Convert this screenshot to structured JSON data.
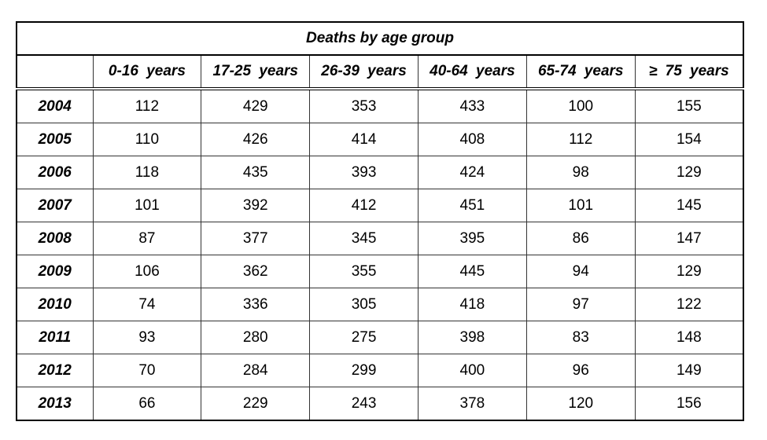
{
  "table": {
    "title": "Deaths by age group",
    "columns": [
      "0-16 years",
      "17-25 years",
      "26-39 years",
      "40-64 years",
      "65-74 years",
      "≥ 75 years"
    ],
    "rows": [
      {
        "year": "2004",
        "values": [
          112,
          429,
          353,
          433,
          100,
          155
        ]
      },
      {
        "year": "2005",
        "values": [
          110,
          426,
          414,
          408,
          112,
          154
        ]
      },
      {
        "year": "2006",
        "values": [
          118,
          435,
          393,
          424,
          98,
          129
        ]
      },
      {
        "year": "2007",
        "values": [
          101,
          392,
          412,
          451,
          101,
          145
        ]
      },
      {
        "year": "2008",
        "values": [
          87,
          377,
          345,
          395,
          86,
          147
        ]
      },
      {
        "year": "2009",
        "values": [
          106,
          362,
          355,
          445,
          94,
          129
        ]
      },
      {
        "year": "2010",
        "values": [
          74,
          336,
          305,
          418,
          97,
          122
        ]
      },
      {
        "year": "2011",
        "values": [
          93,
          280,
          275,
          398,
          83,
          148
        ]
      },
      {
        "year": "2012",
        "values": [
          70,
          284,
          299,
          400,
          96,
          149
        ]
      },
      {
        "year": "2013",
        "values": [
          66,
          229,
          243,
          378,
          120,
          156
        ]
      }
    ]
  }
}
